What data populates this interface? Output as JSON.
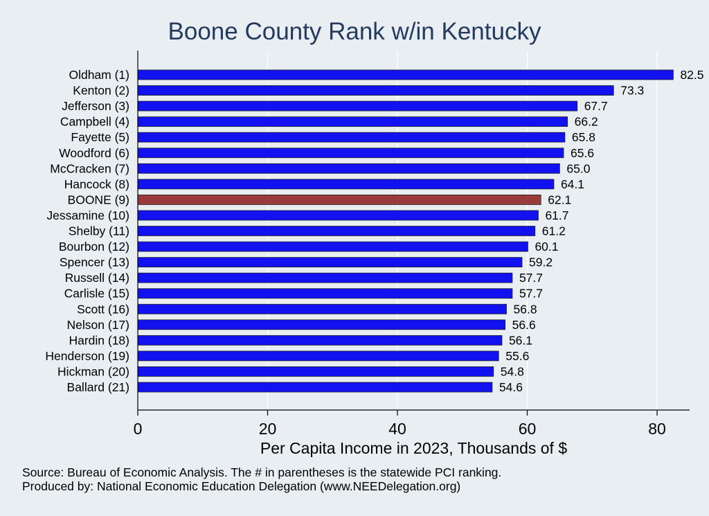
{
  "chart_data": {
    "type": "bar",
    "orientation": "horizontal",
    "title": "Boone County Rank w/in Kentucky",
    "xlabel": "Per Capita Income in 2023, Thousands of $",
    "ylabel": "",
    "xlim": [
      0,
      85
    ],
    "xticks": [
      "0",
      "20",
      "40",
      "60",
      "80"
    ],
    "xtick_values": [
      0,
      20,
      40,
      60,
      80
    ],
    "grid": true,
    "categories": [
      "Oldham  (1)",
      "Kenton  (2)",
      "Jefferson  (3)",
      "Campbell  (4)",
      "Fayette  (5)",
      "Woodford  (6)",
      "McCracken  (7)",
      "Hancock  (8)",
      "BOONE  (9)",
      "Jessamine (10)",
      "Shelby (11)",
      "Bourbon (12)",
      "Spencer (13)",
      "Russell (14)",
      "Carlisle (15)",
      "Scott (16)",
      "Nelson (17)",
      "Hardin (18)",
      "Henderson (19)",
      "Hickman (20)",
      "Ballard (21)"
    ],
    "values": [
      82.5,
      73.3,
      67.7,
      66.2,
      65.8,
      65.6,
      65.0,
      64.1,
      62.1,
      61.7,
      61.2,
      60.1,
      59.2,
      57.7,
      57.7,
      56.8,
      56.6,
      56.1,
      55.6,
      54.8,
      54.6
    ],
    "value_labels": [
      "82.5",
      "73.3",
      "67.7",
      "66.2",
      "65.8",
      "65.6",
      "65.0",
      "64.1",
      "62.1",
      "61.7",
      "61.2",
      "60.1",
      "59.2",
      "57.7",
      "57.7",
      "56.8",
      "56.6",
      "56.1",
      "55.6",
      "54.8",
      "54.6"
    ],
    "highlight_index": 8,
    "colors": {
      "bar": "#1212f0",
      "highlight": "#9a3a3a",
      "background": "#e8eef1",
      "grid": "#ffffff",
      "title": "#243a5e"
    }
  },
  "footer": {
    "source": "Source: Bureau of Economic Analysis. The # in parentheses is the statewide PCI ranking.",
    "produced_by": "Produced by: National Economic Education Delegation (www.NEEDelegation.org)"
  }
}
